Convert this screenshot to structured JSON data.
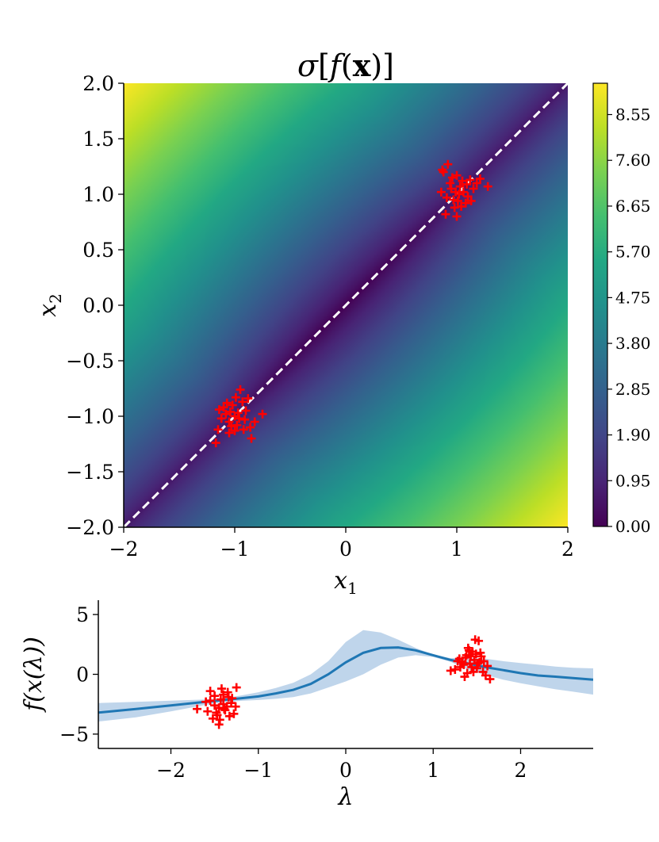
{
  "colors": {
    "marker": "#ff0000",
    "line": "#1f77b4",
    "band": "#aac7e4",
    "diag": "#ffffff"
  },
  "chart_data": [
    {
      "type": "heatmap",
      "title": "σ[f(x)]",
      "xlabel": "x",
      "xlabel_sub": "1",
      "ylabel": "x",
      "ylabel_sub": "2",
      "xlim": [
        -2,
        2
      ],
      "ylim": [
        -2,
        2
      ],
      "xticks": [
        -2,
        -1,
        0,
        1,
        2
      ],
      "xtick_labels": [
        "−2",
        "−1",
        "0",
        "1",
        "2"
      ],
      "yticks": [
        2.0,
        1.5,
        1.0,
        0.5,
        0.0,
        -0.5,
        -1.0,
        -1.5,
        -2.0
      ],
      "ytick_labels": [
        "2.0",
        "1.5",
        "1.0",
        "0.5",
        "0.0",
        "−0.5",
        "−1.0",
        "−1.5",
        "−2.0"
      ],
      "colorbar": {
        "range": [
          0,
          9.2
        ],
        "ticks": [
          8.55,
          7.6,
          6.65,
          5.7,
          4.75,
          3.8,
          2.85,
          1.9,
          0.95,
          0.0
        ],
        "tick_labels": [
          "8.55",
          "7.60",
          "6.65",
          "5.70",
          "4.75",
          "3.80",
          "2.85",
          "1.90",
          "0.95",
          "0.00"
        ]
      },
      "diagonal": {
        "from": [
          -2,
          -2
        ],
        "to": [
          2,
          2
        ],
        "style": "dashed"
      },
      "clusters": [
        {
          "name": "upper-right",
          "points": [
            [
              1.02,
              1.0
            ],
            [
              0.95,
              1.05
            ],
            [
              1.1,
              0.98
            ],
            [
              1.05,
              1.12
            ],
            [
              0.88,
              1.2
            ],
            [
              0.92,
              1.27
            ],
            [
              1.15,
              1.05
            ],
            [
              1.28,
              1.07
            ],
            [
              0.9,
              0.82
            ],
            [
              0.98,
              0.88
            ],
            [
              1.08,
              0.92
            ],
            [
              1.0,
              1.17
            ],
            [
              0.97,
              0.95
            ],
            [
              1.12,
              1.13
            ],
            [
              0.94,
              1.1
            ],
            [
              1.06,
              1.02
            ],
            [
              1.0,
              0.8
            ],
            [
              1.18,
              1.1
            ],
            [
              0.86,
              1.02
            ],
            [
              1.03,
              1.07
            ],
            [
              1.13,
              0.94
            ],
            [
              0.99,
              1.02
            ],
            [
              1.21,
              1.14
            ],
            [
              0.91,
              0.97
            ],
            [
              1.04,
              0.89
            ],
            [
              0.96,
              1.15
            ],
            [
              1.09,
              1.09
            ],
            [
              1.01,
              0.94
            ],
            [
              0.87,
              1.22
            ]
          ]
        },
        {
          "name": "lower-left",
          "points": [
            [
              -1.0,
              -1.0
            ],
            [
              -0.95,
              -0.76
            ],
            [
              -1.1,
              -0.92
            ],
            [
              -1.05,
              -1.05
            ],
            [
              -0.92,
              -1.12
            ],
            [
              -1.15,
              -1.12
            ],
            [
              -1.17,
              -1.24
            ],
            [
              -0.85,
              -1.2
            ],
            [
              -0.75,
              -0.98
            ],
            [
              -0.98,
              -1.08
            ],
            [
              -1.02,
              -0.9
            ],
            [
              -0.9,
              -0.95
            ],
            [
              -1.08,
              -0.98
            ],
            [
              -0.96,
              -1.02
            ],
            [
              -1.05,
              -1.15
            ],
            [
              -0.88,
              -0.84
            ],
            [
              -1.12,
              -1.02
            ],
            [
              -0.93,
              -0.87
            ],
            [
              -1.0,
              -1.13
            ],
            [
              -0.82,
              -1.05
            ],
            [
              -1.07,
              -0.88
            ],
            [
              -0.97,
              -0.97
            ],
            [
              -1.03,
              -1.09
            ],
            [
              -0.91,
              -1.03
            ],
            [
              -1.14,
              -0.94
            ],
            [
              -0.99,
              -0.83
            ],
            [
              -0.86,
              -1.1
            ],
            [
              -1.04,
              -0.96
            ]
          ]
        }
      ]
    },
    {
      "type": "line",
      "xlabel": "λ",
      "ylabel": "f(x(λ))",
      "xlim": [
        -2.83,
        2.83
      ],
      "ylim": [
        -6.2,
        6.2
      ],
      "xticks": [
        -2,
        -1,
        0,
        1,
        2
      ],
      "xtick_labels": [
        "−2",
        "−1",
        "0",
        "1",
        "2"
      ],
      "yticks": [
        5,
        0,
        -5
      ],
      "ytick_labels": [
        "5",
        "0",
        "−5"
      ],
      "series": [
        {
          "name": "mean",
          "x": [
            -2.83,
            -2.4,
            -2.0,
            -1.6,
            -1.4,
            -1.2,
            -1.0,
            -0.8,
            -0.6,
            -0.4,
            -0.2,
            0.0,
            0.2,
            0.4,
            0.6,
            0.8,
            1.0,
            1.2,
            1.4,
            1.6,
            1.8,
            2.0,
            2.2,
            2.4,
            2.6,
            2.83
          ],
          "y": [
            -3.2,
            -2.9,
            -2.6,
            -2.3,
            -2.15,
            -2.0,
            -1.85,
            -1.6,
            -1.3,
            -0.8,
            0.0,
            1.0,
            1.8,
            2.2,
            2.25,
            2.0,
            1.6,
            1.2,
            0.9,
            0.6,
            0.35,
            0.1,
            -0.1,
            -0.2,
            -0.32,
            -0.45
          ]
        }
      ],
      "band": {
        "x": [
          -2.83,
          -2.4,
          -2.0,
          -1.6,
          -1.4,
          -1.2,
          -1.0,
          -0.8,
          -0.6,
          -0.4,
          -0.2,
          0.0,
          0.2,
          0.4,
          0.6,
          0.8,
          1.0,
          1.2,
          1.4,
          1.6,
          1.8,
          2.0,
          2.2,
          2.4,
          2.6,
          2.83
        ],
        "upper": [
          -2.4,
          -2.3,
          -2.2,
          -2.1,
          -2.0,
          -1.78,
          -1.5,
          -1.15,
          -0.7,
          0.0,
          1.1,
          2.7,
          3.7,
          3.5,
          2.9,
          2.2,
          1.65,
          1.35,
          1.4,
          1.3,
          1.1,
          0.95,
          0.8,
          0.65,
          0.55,
          0.5
        ],
        "lower": [
          -3.95,
          -3.6,
          -3.1,
          -2.55,
          -2.35,
          -2.22,
          -2.15,
          -2.05,
          -1.9,
          -1.6,
          -1.1,
          -0.6,
          0.0,
          0.8,
          1.4,
          1.6,
          1.45,
          1.05,
          0.4,
          -0.05,
          -0.45,
          -0.75,
          -1.0,
          -1.25,
          -1.45,
          -1.7
        ]
      },
      "clusters": [
        {
          "name": "left-points",
          "points": [
            [
              -1.42,
              -1.2
            ],
            [
              -1.35,
              -1.5
            ],
            [
              -1.5,
              -1.8
            ],
            [
              -1.25,
              -1.1
            ],
            [
              -1.3,
              -2.0
            ],
            [
              -1.55,
              -2.2
            ],
            [
              -1.4,
              -2.5
            ],
            [
              -1.45,
              -2.8
            ],
            [
              -1.7,
              -2.9
            ],
            [
              -1.38,
              -3.0
            ],
            [
              -1.48,
              -3.2
            ],
            [
              -1.33,
              -3.5
            ],
            [
              -1.28,
              -3.3
            ],
            [
              -1.52,
              -3.7
            ],
            [
              -1.45,
              -4.2
            ],
            [
              -1.6,
              -2.3
            ],
            [
              -1.36,
              -2.7
            ],
            [
              -1.43,
              -2.1
            ],
            [
              -1.47,
              -3.4
            ],
            [
              -1.31,
              -2.4
            ],
            [
              -1.58,
              -3.1
            ],
            [
              -1.4,
              -1.7
            ],
            [
              -1.5,
              -2.6
            ],
            [
              -1.34,
              -1.9
            ],
            [
              -1.44,
              -3.8
            ],
            [
              -1.39,
              -2.9
            ],
            [
              -1.55,
              -1.4
            ],
            [
              -1.26,
              -2.7
            ]
          ]
        },
        {
          "name": "right-points",
          "points": [
            [
              1.48,
              2.9
            ],
            [
              1.52,
              2.8
            ],
            [
              1.4,
              2.2
            ],
            [
              1.45,
              1.9
            ],
            [
              1.38,
              1.6
            ],
            [
              1.55,
              1.5
            ],
            [
              1.3,
              1.3
            ],
            [
              1.58,
              1.1
            ],
            [
              1.42,
              0.9
            ],
            [
              1.35,
              0.8
            ],
            [
              1.5,
              0.5
            ],
            [
              1.25,
              0.4
            ],
            [
              1.46,
              0.2
            ],
            [
              1.6,
              -0.1
            ],
            [
              1.65,
              -0.4
            ],
            [
              1.2,
              0.3
            ],
            [
              1.53,
              1.0
            ],
            [
              1.37,
              1.4
            ],
            [
              1.44,
              0.6
            ],
            [
              1.49,
              1.7
            ],
            [
              1.33,
              1.0
            ],
            [
              1.57,
              0.2
            ],
            [
              1.41,
              2.0
            ],
            [
              1.28,
              1.1
            ],
            [
              1.62,
              0.7
            ],
            [
              1.36,
              -0.2
            ],
            [
              1.47,
              1.2
            ],
            [
              1.39,
              0.1
            ],
            [
              1.54,
              1.8
            ],
            [
              1.31,
              0.6
            ],
            [
              1.51,
              0.9
            ],
            [
              1.43,
              1.5
            ]
          ]
        }
      ]
    }
  ]
}
